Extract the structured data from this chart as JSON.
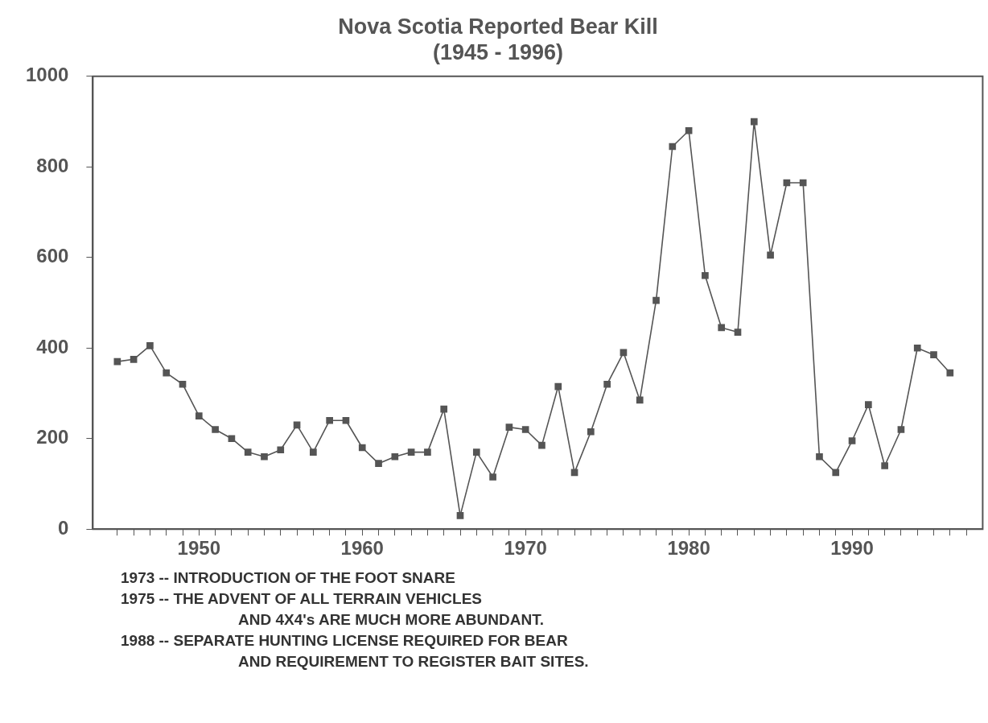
{
  "chart_data": {
    "type": "line",
    "title": "Nova Scotia Reported Bear Kill",
    "subtitle": "(1945 - 1996)",
    "x": [
      1945,
      1946,
      1947,
      1948,
      1949,
      1950,
      1951,
      1952,
      1953,
      1954,
      1955,
      1956,
      1957,
      1958,
      1959,
      1960,
      1961,
      1962,
      1963,
      1964,
      1965,
      1966,
      1967,
      1968,
      1969,
      1970,
      1971,
      1972,
      1973,
      1974,
      1975,
      1976,
      1977,
      1978,
      1979,
      1980,
      1981,
      1982,
      1983,
      1984,
      1985,
      1986,
      1987,
      1988,
      1989,
      1990,
      1991,
      1992,
      1993,
      1994,
      1995,
      1996
    ],
    "series": [
      {
        "color": "#555555",
        "values": [
          370,
          375,
          405,
          345,
          320,
          250,
          220,
          200,
          170,
          160,
          175,
          230,
          170,
          240,
          240,
          180,
          145,
          160,
          170,
          170,
          265,
          30,
          170,
          115,
          225,
          220,
          185,
          315,
          125,
          215,
          320,
          390,
          285,
          505,
          845,
          880,
          560,
          445,
          435,
          900,
          605,
          765,
          765,
          160,
          125,
          195,
          275,
          140,
          220,
          400,
          385,
          345
        ]
      }
    ],
    "xlim": [
      1943.5,
      1998
    ],
    "xticks": [
      {
        "value": 1945,
        "label": null
      },
      {
        "value": 1946,
        "label": null
      },
      {
        "value": 1947,
        "label": null
      },
      {
        "value": 1948,
        "label": null
      },
      {
        "value": 1949,
        "label": null
      },
      1950,
      {
        "value": 1951,
        "label": null
      },
      {
        "value": 1952,
        "label": null
      },
      {
        "value": 1953,
        "label": null
      },
      {
        "value": 1954,
        "label": null
      },
      {
        "value": 1955,
        "label": null
      },
      {
        "value": 1956,
        "label": null
      },
      {
        "value": 1957,
        "label": null
      },
      {
        "value": 1958,
        "label": null
      },
      {
        "value": 1959,
        "label": null
      },
      1960,
      {
        "value": 1961,
        "label": null
      },
      {
        "value": 1962,
        "label": null
      },
      {
        "value": 1963,
        "label": null
      },
      {
        "value": 1964,
        "label": null
      },
      {
        "value": 1965,
        "label": null
      },
      {
        "value": 1966,
        "label": null
      },
      {
        "value": 1967,
        "label": null
      },
      {
        "value": 1968,
        "label": null
      },
      {
        "value": 1969,
        "label": null
      },
      1970,
      {
        "value": 1971,
        "label": null
      },
      {
        "value": 1972,
        "label": null
      },
      {
        "value": 1973,
        "label": null
      },
      {
        "value": 1974,
        "label": null
      },
      {
        "value": 1975,
        "label": null
      },
      {
        "value": 1976,
        "label": null
      },
      {
        "value": 1977,
        "label": null
      },
      {
        "value": 1978,
        "label": null
      },
      {
        "value": 1979,
        "label": null
      },
      1980,
      {
        "value": 1981,
        "label": null
      },
      {
        "value": 1982,
        "label": null
      },
      {
        "value": 1983,
        "label": null
      },
      {
        "value": 1984,
        "label": null
      },
      {
        "value": 1985,
        "label": null
      },
      {
        "value": 1986,
        "label": null
      },
      {
        "value": 1987,
        "label": null
      },
      {
        "value": 1988,
        "label": null
      },
      {
        "value": 1989,
        "label": null
      },
      1990,
      {
        "value": 1991,
        "label": null
      },
      {
        "value": 1992,
        "label": null
      },
      {
        "value": 1993,
        "label": null
      },
      {
        "value": 1994,
        "label": null
      },
      {
        "value": 1995,
        "label": null
      },
      {
        "value": 1996,
        "label": null
      },
      {
        "value": 1997,
        "label": null
      }
    ],
    "ylim": [
      0,
      1000
    ],
    "yticks": [
      0,
      200,
      400,
      600,
      800,
      1000
    ],
    "marker": "square",
    "line_style": "solid",
    "grid": false,
    "legend": false,
    "annotations": [
      "1973 -- INTRODUCTION OF THE FOOT SNARE",
      "1975 -- THE ADVENT OF ALL TERRAIN VEHICLES\nAND 4X4's ARE MUCH MORE ABUNDANT.",
      "1988 -- SEPARATE HUNTING LICENSE REQUIRED FOR BEAR\nAND REQUIREMENT TO REGISTER BAIT SITES."
    ]
  }
}
